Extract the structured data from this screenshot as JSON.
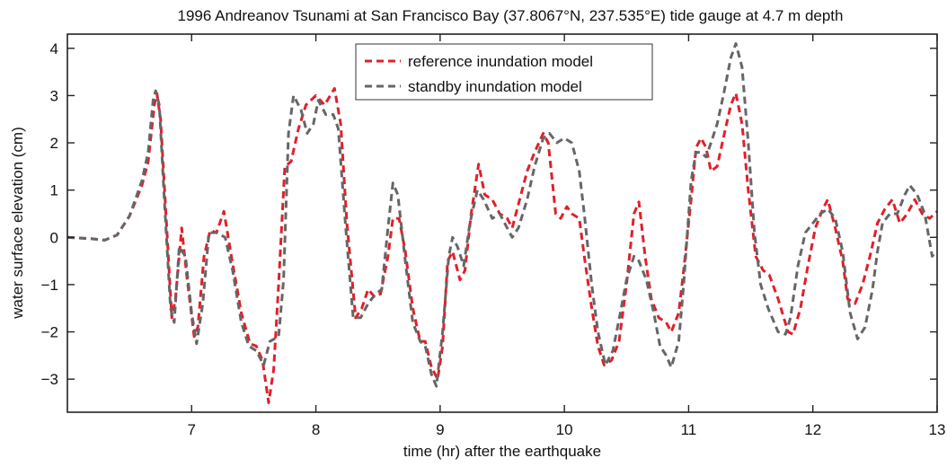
{
  "chart_data": {
    "type": "line",
    "title": "1996 Andreanov Tsunami at San Francisco Bay (37.8067°N, 237.535°E) tide gauge at 4.7 m depth",
    "xlabel": "time (hr) after the earthquake",
    "ylabel": "water surface elevation (cm)",
    "xlim": [
      6.0,
      13.0
    ],
    "ylim": [
      -3.7,
      4.3
    ],
    "xticks": [
      7,
      8,
      9,
      10,
      11,
      12,
      13
    ],
    "yticks": [
      -3,
      -2,
      -1,
      0,
      1,
      2,
      3,
      4
    ],
    "xtick_labels": [
      "7",
      "8",
      "9",
      "10",
      "11",
      "12",
      "13"
    ],
    "ytick_labels": [
      "−3",
      "−2",
      "−1",
      "0",
      "1",
      "2",
      "3",
      "4"
    ],
    "grid": false,
    "legend_position": "top-center",
    "series": [
      {
        "name": "reference inundation model",
        "color": "#e0202a",
        "dash": "dashed",
        "points": [
          [
            6.0,
            0.0
          ],
          [
            6.2,
            -0.03
          ],
          [
            6.3,
            -0.06
          ],
          [
            6.4,
            0.05
          ],
          [
            6.5,
            0.45
          ],
          [
            6.6,
            1.1
          ],
          [
            6.65,
            1.6
          ],
          [
            6.7,
            2.8
          ],
          [
            6.72,
            3.05
          ],
          [
            6.75,
            2.5
          ],
          [
            6.8,
            0.2
          ],
          [
            6.84,
            -1.7
          ],
          [
            6.87,
            -1.3
          ],
          [
            6.92,
            0.2
          ],
          [
            6.96,
            -0.8
          ],
          [
            7.02,
            -2.1
          ],
          [
            7.05,
            -1.9
          ],
          [
            7.1,
            -0.4
          ],
          [
            7.15,
            0.15
          ],
          [
            7.2,
            0.1
          ],
          [
            7.26,
            0.55
          ],
          [
            7.32,
            -0.4
          ],
          [
            7.4,
            -1.6
          ],
          [
            7.47,
            -2.25
          ],
          [
            7.52,
            -2.3
          ],
          [
            7.57,
            -2.6
          ],
          [
            7.62,
            -3.5
          ],
          [
            7.66,
            -2.8
          ],
          [
            7.7,
            -1.0
          ],
          [
            7.75,
            1.5
          ],
          [
            7.8,
            1.6
          ],
          [
            7.86,
            2.3
          ],
          [
            7.92,
            2.8
          ],
          [
            8.0,
            3.0
          ],
          [
            8.07,
            2.8
          ],
          [
            8.15,
            3.15
          ],
          [
            8.2,
            2.4
          ],
          [
            8.25,
            0.3
          ],
          [
            8.32,
            -1.7
          ],
          [
            8.37,
            -1.5
          ],
          [
            8.42,
            -1.1
          ],
          [
            8.47,
            -1.25
          ],
          [
            8.52,
            -1.2
          ],
          [
            8.58,
            -0.4
          ],
          [
            8.62,
            0.4
          ],
          [
            8.67,
            0.4
          ],
          [
            8.72,
            -0.3
          ],
          [
            8.78,
            -1.5
          ],
          [
            8.84,
            -2.2
          ],
          [
            8.88,
            -2.2
          ],
          [
            8.93,
            -2.75
          ],
          [
            8.98,
            -3.0
          ],
          [
            9.02,
            -2.3
          ],
          [
            9.06,
            -0.5
          ],
          [
            9.1,
            -0.3
          ],
          [
            9.16,
            -0.9
          ],
          [
            9.2,
            -0.7
          ],
          [
            9.25,
            0.5
          ],
          [
            9.31,
            1.55
          ],
          [
            9.36,
            0.9
          ],
          [
            9.42,
            0.8
          ],
          [
            9.48,
            0.5
          ],
          [
            9.54,
            0.4
          ],
          [
            9.58,
            0.2
          ],
          [
            9.64,
            0.8
          ],
          [
            9.7,
            1.4
          ],
          [
            9.76,
            1.8
          ],
          [
            9.83,
            2.2
          ],
          [
            9.87,
            2.0
          ],
          [
            9.93,
            0.5
          ],
          [
            9.97,
            0.4
          ],
          [
            10.02,
            0.65
          ],
          [
            10.06,
            0.5
          ],
          [
            10.12,
            0.4
          ],
          [
            10.16,
            -0.4
          ],
          [
            10.22,
            -1.5
          ],
          [
            10.27,
            -2.3
          ],
          [
            10.32,
            -2.7
          ],
          [
            10.38,
            -2.6
          ],
          [
            10.44,
            -2.2
          ],
          [
            10.5,
            -1.0
          ],
          [
            10.56,
            0.5
          ],
          [
            10.6,
            0.75
          ],
          [
            10.65,
            -0.4
          ],
          [
            10.7,
            -1.3
          ],
          [
            10.76,
            -1.7
          ],
          [
            10.82,
            -1.8
          ],
          [
            10.86,
            -2.0
          ],
          [
            10.92,
            -1.6
          ],
          [
            10.96,
            -0.7
          ],
          [
            11.02,
            0.8
          ],
          [
            11.06,
            1.9
          ],
          [
            11.1,
            2.1
          ],
          [
            11.14,
            1.9
          ],
          [
            11.18,
            1.4
          ],
          [
            11.23,
            1.5
          ],
          [
            11.28,
            2.1
          ],
          [
            11.34,
            2.8
          ],
          [
            11.38,
            3.05
          ],
          [
            11.43,
            2.4
          ],
          [
            11.48,
            1.0
          ],
          [
            11.54,
            -0.4
          ],
          [
            11.6,
            -0.7
          ],
          [
            11.65,
            -0.8
          ],
          [
            11.72,
            -1.3
          ],
          [
            11.8,
            -2.0
          ],
          [
            11.84,
            -2.05
          ],
          [
            11.9,
            -1.5
          ],
          [
            11.96,
            -0.6
          ],
          [
            12.02,
            0.2
          ],
          [
            12.08,
            0.6
          ],
          [
            12.12,
            0.8
          ],
          [
            12.18,
            0.2
          ],
          [
            12.24,
            -0.5
          ],
          [
            12.28,
            -1.3
          ],
          [
            12.34,
            -1.4
          ],
          [
            12.4,
            -1.0
          ],
          [
            12.46,
            -0.4
          ],
          [
            12.52,
            0.3
          ],
          [
            12.58,
            0.6
          ],
          [
            12.64,
            0.8
          ],
          [
            12.7,
            0.3
          ],
          [
            12.76,
            0.5
          ],
          [
            12.82,
            0.8
          ],
          [
            12.88,
            0.5
          ],
          [
            12.94,
            0.4
          ],
          [
            13.0,
            0.55
          ]
        ]
      },
      {
        "name": "standby inundation model",
        "color": "#666666",
        "dash": "dashed",
        "points": [
          [
            6.0,
            0.0
          ],
          [
            6.2,
            -0.03
          ],
          [
            6.3,
            -0.06
          ],
          [
            6.4,
            0.05
          ],
          [
            6.5,
            0.45
          ],
          [
            6.6,
            1.2
          ],
          [
            6.65,
            1.8
          ],
          [
            6.69,
            2.9
          ],
          [
            6.71,
            3.1
          ],
          [
            6.74,
            2.8
          ],
          [
            6.78,
            0.8
          ],
          [
            6.83,
            -1.5
          ],
          [
            6.86,
            -1.8
          ],
          [
            6.9,
            -0.2
          ],
          [
            6.95,
            -0.4
          ],
          [
            7.0,
            -1.6
          ],
          [
            7.04,
            -2.25
          ],
          [
            7.09,
            -1.4
          ],
          [
            7.14,
            0.1
          ],
          [
            7.2,
            0.1
          ],
          [
            7.27,
            0.0
          ],
          [
            7.33,
            -0.7
          ],
          [
            7.4,
            -1.8
          ],
          [
            7.46,
            -2.3
          ],
          [
            7.52,
            -2.4
          ],
          [
            7.58,
            -2.7
          ],
          [
            7.63,
            -2.2
          ],
          [
            7.7,
            -2.1
          ],
          [
            7.74,
            -0.9
          ],
          [
            7.78,
            2.2
          ],
          [
            7.82,
            3.0
          ],
          [
            7.88,
            2.7
          ],
          [
            7.93,
            2.2
          ],
          [
            7.98,
            2.4
          ],
          [
            8.02,
            2.9
          ],
          [
            8.08,
            2.6
          ],
          [
            8.14,
            2.6
          ],
          [
            8.18,
            2.3
          ],
          [
            8.24,
            0.2
          ],
          [
            8.3,
            -1.7
          ],
          [
            8.36,
            -1.7
          ],
          [
            8.42,
            -1.4
          ],
          [
            8.48,
            -1.2
          ],
          [
            8.53,
            -1.1
          ],
          [
            8.58,
            0.2
          ],
          [
            8.62,
            1.15
          ],
          [
            8.66,
            0.9
          ],
          [
            8.72,
            -0.5
          ],
          [
            8.78,
            -1.8
          ],
          [
            8.84,
            -2.2
          ],
          [
            8.88,
            -2.3
          ],
          [
            8.93,
            -2.9
          ],
          [
            8.97,
            -3.15
          ],
          [
            9.02,
            -2.0
          ],
          [
            9.07,
            -0.4
          ],
          [
            9.1,
            0.0
          ],
          [
            9.14,
            -0.2
          ],
          [
            9.19,
            -0.6
          ],
          [
            9.24,
            0.3
          ],
          [
            9.3,
            1.0
          ],
          [
            9.35,
            0.8
          ],
          [
            9.42,
            0.4
          ],
          [
            9.48,
            0.5
          ],
          [
            9.54,
            0.2
          ],
          [
            9.58,
            0.0
          ],
          [
            9.63,
            0.2
          ],
          [
            9.7,
            0.8
          ],
          [
            9.76,
            1.5
          ],
          [
            9.83,
            2.1
          ],
          [
            9.88,
            2.2
          ],
          [
            9.94,
            2.0
          ],
          [
            10.0,
            2.1
          ],
          [
            10.06,
            2.0
          ],
          [
            10.12,
            1.4
          ],
          [
            10.16,
            0.5
          ],
          [
            10.22,
            -1.0
          ],
          [
            10.27,
            -2.0
          ],
          [
            10.33,
            -2.7
          ],
          [
            10.39,
            -2.4
          ],
          [
            10.45,
            -1.6
          ],
          [
            10.5,
            -0.9
          ],
          [
            10.56,
            -0.4
          ],
          [
            10.6,
            -0.5
          ],
          [
            10.66,
            -0.9
          ],
          [
            10.72,
            -1.6
          ],
          [
            10.77,
            -2.3
          ],
          [
            10.82,
            -2.5
          ],
          [
            10.86,
            -2.75
          ],
          [
            10.92,
            -2.2
          ],
          [
            10.96,
            -1.0
          ],
          [
            11.02,
            1.2
          ],
          [
            11.06,
            1.8
          ],
          [
            11.1,
            1.8
          ],
          [
            11.14,
            1.7
          ],
          [
            11.18,
            2.0
          ],
          [
            11.23,
            2.4
          ],
          [
            11.28,
            3.0
          ],
          [
            11.34,
            3.8
          ],
          [
            11.38,
            4.1
          ],
          [
            11.43,
            3.6
          ],
          [
            11.48,
            2.0
          ],
          [
            11.53,
            0.1
          ],
          [
            11.58,
            -1.0
          ],
          [
            11.64,
            -1.5
          ],
          [
            11.72,
            -2.0
          ],
          [
            11.78,
            -2.05
          ],
          [
            11.82,
            -1.7
          ],
          [
            11.88,
            -0.6
          ],
          [
            11.94,
            0.1
          ],
          [
            12.0,
            0.3
          ],
          [
            12.06,
            0.5
          ],
          [
            12.12,
            0.6
          ],
          [
            12.18,
            0.4
          ],
          [
            12.24,
            -0.3
          ],
          [
            12.3,
            -1.6
          ],
          [
            12.36,
            -2.15
          ],
          [
            12.42,
            -1.9
          ],
          [
            12.48,
            -1.1
          ],
          [
            12.52,
            -0.3
          ],
          [
            12.56,
            0.3
          ],
          [
            12.62,
            0.5
          ],
          [
            12.68,
            0.5
          ],
          [
            12.74,
            0.9
          ],
          [
            12.78,
            1.1
          ],
          [
            12.84,
            0.9
          ],
          [
            12.9,
            0.5
          ],
          [
            12.96,
            -0.4
          ],
          [
            13.0,
            -0.3
          ]
        ]
      }
    ]
  }
}
